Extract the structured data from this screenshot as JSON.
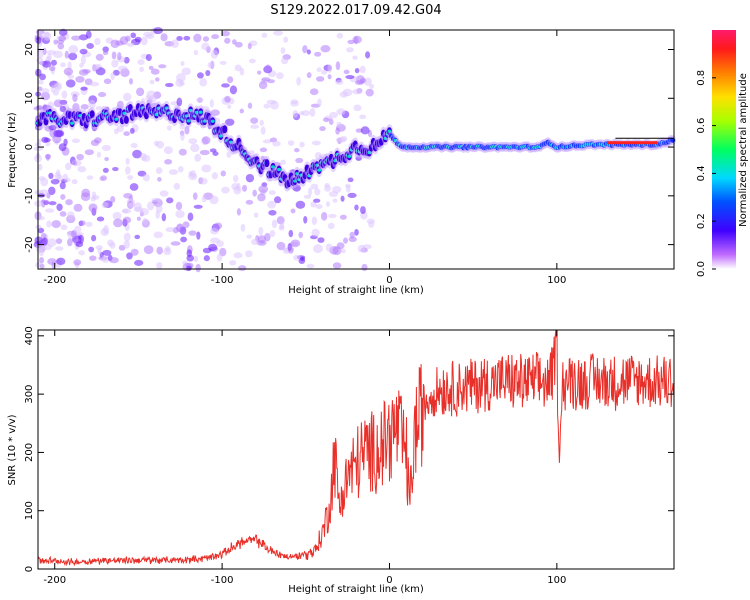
{
  "chart_data": [
    {
      "type": "heatmap",
      "title": "S129.2022.017.09.42.G04",
      "xlabel": "Height of straight line (km)",
      "ylabel": "Frequency (Hz)",
      "xlim": [
        -210,
        170
      ],
      "ylim": [
        -25,
        24
      ],
      "xticks": [
        -200,
        -100,
        0,
        100
      ],
      "yticks": [
        -20,
        -10,
        0,
        10,
        20
      ],
      "colorbar": {
        "label": "Normalized spectral amplitude",
        "range": [
          0,
          1
        ],
        "ticks": [
          0.0,
          0.2,
          0.4,
          0.6,
          0.8
        ]
      },
      "ridge": {
        "x": [
          -210,
          -190,
          -170,
          -150,
          -130,
          -110,
          -100,
          -90,
          -80,
          -70,
          -60,
          -50,
          -45,
          -40,
          -30,
          -20,
          -10,
          -5,
          0,
          5,
          10,
          30,
          60,
          90,
          95,
          100,
          120,
          140,
          160,
          170
        ],
        "y": [
          6,
          5.5,
          6,
          7,
          7,
          6,
          3,
          0,
          -3,
          -5,
          -7,
          -6,
          -3,
          -4,
          -2,
          0,
          0,
          1,
          3,
          0.5,
          0,
          0,
          0,
          0,
          1,
          0,
          0.5,
          0.5,
          0.5,
          1.5
        ]
      }
    },
    {
      "type": "line",
      "title": "",
      "xlabel": "Height of straight line (km)",
      "ylabel": "SNR (10 * v/v)",
      "xlim": [
        -210,
        170
      ],
      "ylim": [
        0,
        410
      ],
      "xticks": [
        -200,
        -100,
        0,
        100
      ],
      "yticks": [
        0,
        100,
        200,
        300,
        400
      ],
      "color": "#e8302a",
      "series": [
        {
          "x": [
            -210,
            -190,
            -170,
            -150,
            -130,
            -110,
            -100,
            -90,
            -80,
            -70,
            -60,
            -50,
            -45,
            -40,
            -35,
            -33,
            -30,
            -25,
            -20,
            -15,
            -10,
            -5,
            0,
            5,
            10,
            12,
            15,
            20,
            25,
            30,
            40,
            50,
            60,
            70,
            80,
            90,
            95,
            98,
            100,
            101,
            103,
            110,
            120,
            140,
            160,
            170
          ],
          "y": [
            15,
            12,
            15,
            15,
            15,
            18,
            25,
            45,
            50,
            30,
            20,
            25,
            30,
            60,
            120,
            200,
            110,
            160,
            180,
            200,
            200,
            210,
            230,
            240,
            200,
            110,
            230,
            280,
            300,
            310,
            310,
            315,
            320,
            322,
            320,
            322,
            320,
            340,
            405,
            180,
            320,
            322,
            322,
            322,
            322,
            325
          ]
        }
      ]
    }
  ]
}
